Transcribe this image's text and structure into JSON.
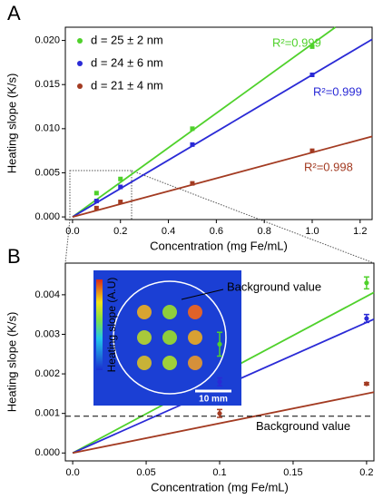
{
  "chart_data": [
    {
      "type": "scatter",
      "panel": "A",
      "x_label": "Concentration (mg Fe/mL)",
      "y_label": "Heating slope (K/s)",
      "xlim": [
        -0.03,
        1.25
      ],
      "ylim": [
        -0.0003,
        0.0215
      ],
      "xticks": [
        {
          "value": 0,
          "label": "0.0"
        },
        0.2,
        0.4,
        0.6,
        0.8,
        {
          "value": 1,
          "label": "1.0"
        },
        1.2
      ],
      "yticks": [
        {
          "value": 0,
          "label": "0.000"
        },
        {
          "value": 0.005,
          "label": "0.005"
        },
        {
          "value": 0.01,
          "label": "0.010"
        },
        {
          "value": 0.015,
          "label": "0.015"
        },
        {
          "value": 0.02,
          "label": "0.020"
        }
      ],
      "legend": "upper left",
      "series": [
        {
          "name": "d = 25 ± 2 nm",
          "color": "#4fd12b",
          "x": [
            0.1,
            0.2,
            0.5,
            1.0
          ],
          "values": [
            0.0027,
            0.0043,
            0.01,
            0.0193
          ],
          "fit_slope": 0.0196,
          "fit_label": "R²=0.999"
        },
        {
          "name": "d = 24 ± 6 nm",
          "color": "#2a2ad6",
          "x": [
            0.1,
            0.2,
            0.5,
            1.0
          ],
          "values": [
            0.0018,
            0.0034,
            0.0082,
            0.0161
          ],
          "fit_slope": 0.0161,
          "fit_label": "R²=0.999"
        },
        {
          "name": "d = 21 ± 4 nm",
          "color": "#a33b22",
          "x": [
            0.1,
            0.2,
            0.5,
            1.0
          ],
          "values": [
            0.001,
            0.0017,
            0.0038,
            0.0075
          ],
          "fit_slope": 0.0073,
          "fit_label": "R²=0.998"
        }
      ]
    },
    {
      "type": "scatter",
      "panel": "B",
      "x_label": "Concentration (mg Fe/mL)",
      "y_label": "Heating slope (K/s)",
      "xlim": [
        -0.005,
        0.205
      ],
      "ylim": [
        -0.0002,
        0.0048
      ],
      "xticks": [
        {
          "value": 0,
          "label": "0.0"
        },
        0.05,
        0.1,
        0.15,
        0.2
      ],
      "yticks": [
        {
          "value": 0,
          "label": "0.000"
        },
        0.001,
        0.002,
        0.003,
        0.004
      ],
      "series": [
        {
          "color": "#4fd12b",
          "x": [
            0.1,
            0.2
          ],
          "values": [
            0.00275,
            0.0043
          ],
          "errors": [
            0.0003,
            0.00015
          ],
          "fit_slope": 0.0198
        },
        {
          "color": "#2a2ad6",
          "x": [
            0.1,
            0.2
          ],
          "values": [
            0.0018,
            0.0034
          ],
          "errors": [
            0.0001,
            0.0001
          ],
          "fit_slope": 0.0165
        },
        {
          "color": "#a33b22",
          "x": [
            0.1,
            0.2
          ],
          "values": [
            0.001,
            0.00175
          ],
          "errors": [
            0.0001,
            3e-05
          ],
          "fit_slope": 0.0075
        }
      ],
      "reference_line": {
        "value": 0.00093,
        "label": "Background value"
      },
      "inset": {
        "colorbar_label": "Heating slope (A.U)",
        "scale_label": "10 mm",
        "annotation": "Background value"
      }
    }
  ]
}
